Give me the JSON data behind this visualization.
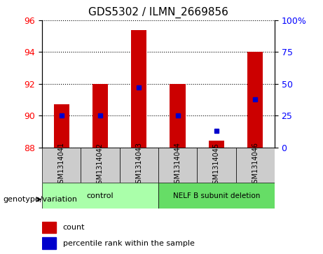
{
  "title": "GDS5302 / ILMN_2669856",
  "samples": [
    "GSM1314041",
    "GSM1314042",
    "GSM1314043",
    "GSM1314044",
    "GSM1314045",
    "GSM1314046"
  ],
  "counts": [
    90.7,
    92.0,
    95.4,
    92.0,
    88.4,
    94.0
  ],
  "percentile_ranks": [
    25,
    25,
    47,
    25,
    13,
    38
  ],
  "ymin": 88,
  "ymax": 96,
  "yticks_left": [
    88,
    90,
    92,
    94,
    96
  ],
  "yticks_right": [
    0,
    25,
    50,
    75,
    100
  ],
  "bar_color": "#cc0000",
  "dot_color": "#0000cc",
  "legend_count_label": "count",
  "legend_percentile_label": "percentile rank within the sample",
  "label_area_color": "#cccccc",
  "group_area_color_control": "#aaffaa",
  "group_area_color_deletion": "#66dd66"
}
